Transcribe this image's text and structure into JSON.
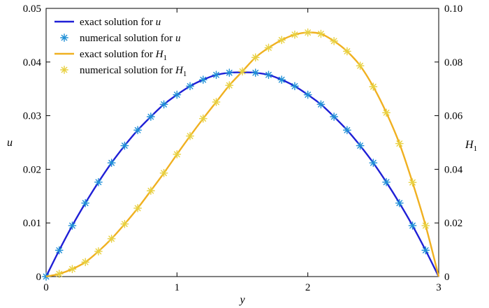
{
  "chart_data": {
    "type": "line",
    "xlabel": "y",
    "ylabel_left": "u",
    "ylabel_right": "H",
    "ylabel_right_sub": "1",
    "xlim": [
      0,
      3
    ],
    "ylim_left": [
      0,
      0.05
    ],
    "ylim_right": [
      0,
      0.1
    ],
    "x_ticks": [
      "0",
      "1",
      "2",
      "3"
    ],
    "left_ticks": [
      "0",
      "0.01",
      "0.02",
      "0.03",
      "0.04",
      "0.05"
    ],
    "right_ticks": [
      "0",
      "0.02",
      "0.04",
      "0.06",
      "0.08",
      "0.10"
    ],
    "grid": false,
    "legend_position": "top-left",
    "colors": {
      "u": "#1f1fd6",
      "u_markers": "#1f8fd6",
      "H1": "#f0b020",
      "H1_markers": "#e8d040"
    },
    "series": [
      {
        "name": "exact solution for u",
        "axis": "left",
        "style": "line",
        "x": [
          0,
          0.1,
          0.2,
          0.3,
          0.4,
          0.5,
          0.6,
          0.7,
          0.8,
          0.9,
          1.0,
          1.1,
          1.2,
          1.3,
          1.4,
          1.5,
          1.6,
          1.7,
          1.8,
          1.9,
          2.0,
          2.1,
          2.2,
          2.3,
          2.4,
          2.5,
          2.6,
          2.7,
          2.8,
          2.9,
          3.0
        ],
        "y": [
          0,
          0.0049,
          0.0095,
          0.0137,
          0.0176,
          0.0212,
          0.0244,
          0.0273,
          0.0298,
          0.0321,
          0.0339,
          0.0355,
          0.0367,
          0.0376,
          0.038,
          0.0381,
          0.038,
          0.0376,
          0.0367,
          0.0355,
          0.0339,
          0.0321,
          0.0298,
          0.0273,
          0.0244,
          0.0212,
          0.0176,
          0.0137,
          0.0095,
          0.0049,
          0
        ]
      },
      {
        "name": "numerical solution for u",
        "axis": "left",
        "style": "marker",
        "x": [
          0,
          0.1,
          0.2,
          0.3,
          0.4,
          0.5,
          0.6,
          0.7,
          0.8,
          0.9,
          1.0,
          1.1,
          1.2,
          1.3,
          1.4,
          1.6,
          1.7,
          1.8,
          1.9,
          2.0,
          2.1,
          2.2,
          2.3,
          2.4,
          2.5,
          2.6,
          2.7,
          2.8,
          2.9
        ],
        "y": [
          0,
          0.0049,
          0.0095,
          0.0137,
          0.0176,
          0.0212,
          0.0244,
          0.0273,
          0.0298,
          0.0321,
          0.0339,
          0.0355,
          0.0367,
          0.0376,
          0.038,
          0.038,
          0.0376,
          0.0367,
          0.0355,
          0.0339,
          0.0321,
          0.0298,
          0.0273,
          0.0244,
          0.0212,
          0.0176,
          0.0137,
          0.0095,
          0.0049
        ]
      },
      {
        "name": "exact solution for H",
        "name_sub": "1",
        "axis": "right",
        "style": "line",
        "x": [
          0,
          0.1,
          0.2,
          0.3,
          0.4,
          0.5,
          0.6,
          0.7,
          0.8,
          0.9,
          1.0,
          1.1,
          1.2,
          1.3,
          1.4,
          1.5,
          1.6,
          1.7,
          1.8,
          1.9,
          2.0,
          2.1,
          2.2,
          2.3,
          2.4,
          2.5,
          2.6,
          2.7,
          2.8,
          2.9,
          3.0
        ],
        "y": [
          0,
          0.001,
          0.0028,
          0.0054,
          0.0094,
          0.0141,
          0.0196,
          0.0255,
          0.032,
          0.0386,
          0.0456,
          0.0524,
          0.0589,
          0.0651,
          0.0713,
          0.0765,
          0.0817,
          0.0853,
          0.0882,
          0.0902,
          0.091,
          0.0905,
          0.0878,
          0.084,
          0.0786,
          0.0708,
          0.0611,
          0.0496,
          0.0351,
          0.019,
          0
        ]
      },
      {
        "name": "numerical solution for H",
        "name_sub": "1",
        "axis": "right",
        "style": "marker",
        "x": [
          0.1,
          0.2,
          0.3,
          0.4,
          0.5,
          0.6,
          0.7,
          0.8,
          0.9,
          1.0,
          1.1,
          1.2,
          1.3,
          1.4,
          1.5,
          1.6,
          1.7,
          1.8,
          1.9,
          2.0,
          2.1,
          2.2,
          2.3,
          2.4,
          2.5,
          2.6,
          2.7,
          2.8,
          2.9
        ],
        "y": [
          0.001,
          0.0028,
          0.0054,
          0.0094,
          0.0141,
          0.0196,
          0.0255,
          0.032,
          0.0386,
          0.0456,
          0.0524,
          0.0589,
          0.0651,
          0.0713,
          0.0765,
          0.0817,
          0.0853,
          0.0882,
          0.0902,
          0.091,
          0.0905,
          0.0878,
          0.084,
          0.0786,
          0.0708,
          0.0611,
          0.0496,
          0.0351,
          0.019
        ]
      }
    ]
  },
  "legend": {
    "entries": [
      {
        "prefix": "exact solution for ",
        "var": "u",
        "sub": ""
      },
      {
        "prefix": "numerical solution for ",
        "var": "u",
        "sub": ""
      },
      {
        "prefix": "exact solution for ",
        "var": "H",
        "sub": "1"
      },
      {
        "prefix": "numerical solution for ",
        "var": "H",
        "sub": "1"
      }
    ]
  }
}
